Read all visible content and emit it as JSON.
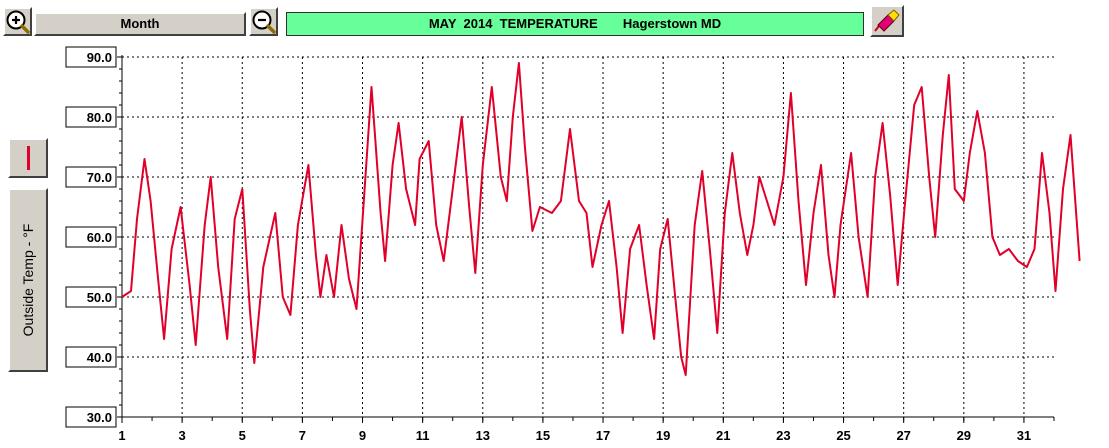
{
  "toolbar": {
    "zoom_in_icon": "zoom-in-icon",
    "zoom_out_icon": "zoom-out-icon",
    "period_label": "Month",
    "title": "MAY  2014  TEMPERATURE       Hagerstown MD",
    "tool_icon": "marker-eraser-icon"
  },
  "colors": {
    "series": "#e0002a",
    "title_bg": "#66ff99",
    "button_bg": "#d4d0c8"
  },
  "chart_data": {
    "type": "line",
    "title": "MAY  2014  TEMPERATURE       Hagerstown MD",
    "ylabel": "Outside Temp - °F",
    "xlabel": "",
    "xlim": [
      1,
      32
    ],
    "ylim": [
      30,
      90
    ],
    "y_ticks": [
      "90.0",
      "80.0",
      "70.0",
      "60.0",
      "50.0",
      "40.0",
      "30.0"
    ],
    "x_tick_labels": [
      "1",
      "3",
      "5",
      "7",
      "9",
      "11",
      "13",
      "15",
      "17",
      "19",
      "21",
      "23",
      "25",
      "27",
      "29",
      "31"
    ],
    "grid": true,
    "series": [
      {
        "color": "#e0002a",
        "points": [
          [
            1.0,
            50
          ],
          [
            1.3,
            51
          ],
          [
            1.5,
            63
          ],
          [
            1.75,
            73
          ],
          [
            1.95,
            66
          ],
          [
            2.2,
            53
          ],
          [
            2.4,
            43
          ],
          [
            2.65,
            58
          ],
          [
            2.95,
            65
          ],
          [
            3.25,
            52
          ],
          [
            3.45,
            42
          ],
          [
            3.75,
            62
          ],
          [
            3.95,
            70
          ],
          [
            4.2,
            55
          ],
          [
            4.5,
            43
          ],
          [
            4.75,
            63
          ],
          [
            5.0,
            68
          ],
          [
            5.25,
            48
          ],
          [
            5.4,
            39
          ],
          [
            5.7,
            55
          ],
          [
            6.1,
            64
          ],
          [
            6.35,
            50
          ],
          [
            6.6,
            47
          ],
          [
            6.85,
            62
          ],
          [
            7.2,
            72
          ],
          [
            7.45,
            57
          ],
          [
            7.6,
            50
          ],
          [
            7.8,
            57
          ],
          [
            8.05,
            50
          ],
          [
            8.3,
            62
          ],
          [
            8.55,
            53
          ],
          [
            8.8,
            48
          ],
          [
            9.3,
            85
          ],
          [
            9.6,
            64
          ],
          [
            9.75,
            56
          ],
          [
            10.0,
            72
          ],
          [
            10.2,
            79
          ],
          [
            10.45,
            68
          ],
          [
            10.75,
            62
          ],
          [
            10.9,
            73
          ],
          [
            11.2,
            76
          ],
          [
            11.45,
            62
          ],
          [
            11.7,
            56
          ],
          [
            12.0,
            68
          ],
          [
            12.3,
            80
          ],
          [
            12.55,
            65
          ],
          [
            12.75,
            54
          ],
          [
            13.0,
            72
          ],
          [
            13.3,
            85
          ],
          [
            13.6,
            70
          ],
          [
            13.8,
            66
          ],
          [
            14.0,
            80
          ],
          [
            14.2,
            89
          ],
          [
            14.4,
            75
          ],
          [
            14.65,
            61
          ],
          [
            14.9,
            65
          ],
          [
            15.3,
            64
          ],
          [
            15.6,
            66
          ],
          [
            15.9,
            78
          ],
          [
            16.2,
            66
          ],
          [
            16.45,
            64
          ],
          [
            16.65,
            55
          ],
          [
            16.95,
            62
          ],
          [
            17.2,
            66
          ],
          [
            17.45,
            55
          ],
          [
            17.65,
            44
          ],
          [
            17.9,
            58
          ],
          [
            18.2,
            62
          ],
          [
            18.45,
            52
          ],
          [
            18.7,
            43
          ],
          [
            18.9,
            58
          ],
          [
            19.15,
            63
          ],
          [
            19.4,
            50
          ],
          [
            19.6,
            40
          ],
          [
            19.75,
            37
          ],
          [
            20.05,
            62
          ],
          [
            20.3,
            71
          ],
          [
            20.55,
            58
          ],
          [
            20.8,
            44
          ],
          [
            21.05,
            64
          ],
          [
            21.3,
            74
          ],
          [
            21.55,
            64
          ],
          [
            21.8,
            57
          ],
          [
            22.0,
            62
          ],
          [
            22.2,
            70
          ],
          [
            22.45,
            66
          ],
          [
            22.7,
            62
          ],
          [
            23.0,
            70
          ],
          [
            23.25,
            84
          ],
          [
            23.5,
            66
          ],
          [
            23.75,
            52
          ],
          [
            24.0,
            64
          ],
          [
            24.25,
            72
          ],
          [
            24.5,
            57
          ],
          [
            24.7,
            50
          ],
          [
            24.9,
            62
          ],
          [
            25.25,
            74
          ],
          [
            25.5,
            60
          ],
          [
            25.8,
            50
          ],
          [
            26.05,
            70
          ],
          [
            26.3,
            79
          ],
          [
            26.55,
            67
          ],
          [
            26.8,
            52
          ],
          [
            27.05,
            66
          ],
          [
            27.35,
            82
          ],
          [
            27.6,
            85
          ],
          [
            27.85,
            70
          ],
          [
            28.05,
            60
          ],
          [
            28.3,
            77
          ],
          [
            28.5,
            87
          ],
          [
            28.7,
            68
          ],
          [
            29.0,
            66
          ],
          [
            29.2,
            74
          ],
          [
            29.45,
            81
          ],
          [
            29.7,
            74
          ],
          [
            29.95,
            60
          ],
          [
            30.2,
            57
          ],
          [
            30.5,
            58
          ],
          [
            30.8,
            56
          ],
          [
            31.1,
            55
          ],
          [
            31.35,
            58
          ],
          [
            31.6,
            74
          ],
          [
            31.85,
            64
          ],
          [
            32.05,
            51
          ],
          [
            32.3,
            68
          ],
          [
            32.55,
            77
          ],
          [
            32.85,
            56
          ]
        ]
      }
    ]
  }
}
